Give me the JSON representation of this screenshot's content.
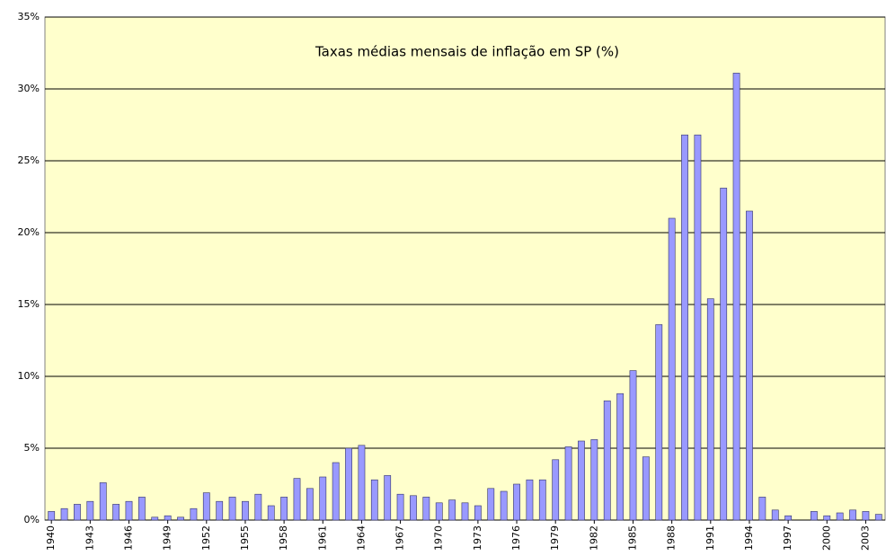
{
  "chart_data": {
    "type": "bar",
    "title": "Taxas médias mensais de inflação em SP (%)",
    "categories": [
      "1940",
      null,
      null,
      "1943",
      null,
      null,
      "1946",
      null,
      null,
      "1949",
      null,
      null,
      "1952",
      null,
      null,
      "1955",
      null,
      null,
      "1958",
      null,
      null,
      "1961",
      null,
      null,
      "1964",
      null,
      null,
      "1967",
      null,
      null,
      "1970",
      null,
      null,
      "1973",
      null,
      null,
      "1976",
      null,
      null,
      "1979",
      null,
      null,
      "1982",
      null,
      null,
      "1985",
      null,
      null,
      "1988",
      null,
      null,
      "1991",
      null,
      null,
      "1994",
      null,
      null,
      "1997",
      null,
      null,
      "2000",
      null,
      null,
      "2003",
      null
    ],
    "values": [
      0.6,
      0.8,
      1.1,
      1.3,
      2.6,
      1.1,
      1.3,
      1.6,
      0.2,
      0.3,
      0.2,
      0.8,
      1.9,
      1.3,
      1.6,
      1.3,
      1.8,
      1.0,
      1.6,
      2.9,
      2.2,
      3.0,
      4.0,
      5.0,
      5.2,
      2.8,
      3.1,
      1.8,
      1.7,
      1.6,
      1.2,
      1.4,
      1.2,
      1.0,
      2.2,
      2.0,
      2.5,
      2.8,
      2.8,
      4.2,
      5.1,
      5.5,
      5.6,
      8.3,
      8.8,
      10.4,
      4.4,
      13.6,
      21.0,
      26.8,
      26.8,
      15.4,
      23.1,
      31.1,
      21.5,
      1.6,
      0.7,
      0.3,
      0,
      0.6,
      0.3,
      0.5,
      0.7,
      0.6,
      0.4
    ],
    "color": "#9999ff",
    "background": "#ffffcc",
    "grid": true,
    "ylim": [
      0,
      35
    ],
    "yticks": [
      {
        "value": 0,
        "label": "0%"
      },
      {
        "value": 5,
        "label": "5%"
      },
      {
        "value": 10,
        "label": "10%"
      },
      {
        "value": 15,
        "label": "15%"
      },
      {
        "value": 20,
        "label": "20%"
      },
      {
        "value": 25,
        "label": "25%"
      },
      {
        "value": 30,
        "label": "30%"
      },
      {
        "value": 35,
        "label": "35%"
      }
    ]
  }
}
